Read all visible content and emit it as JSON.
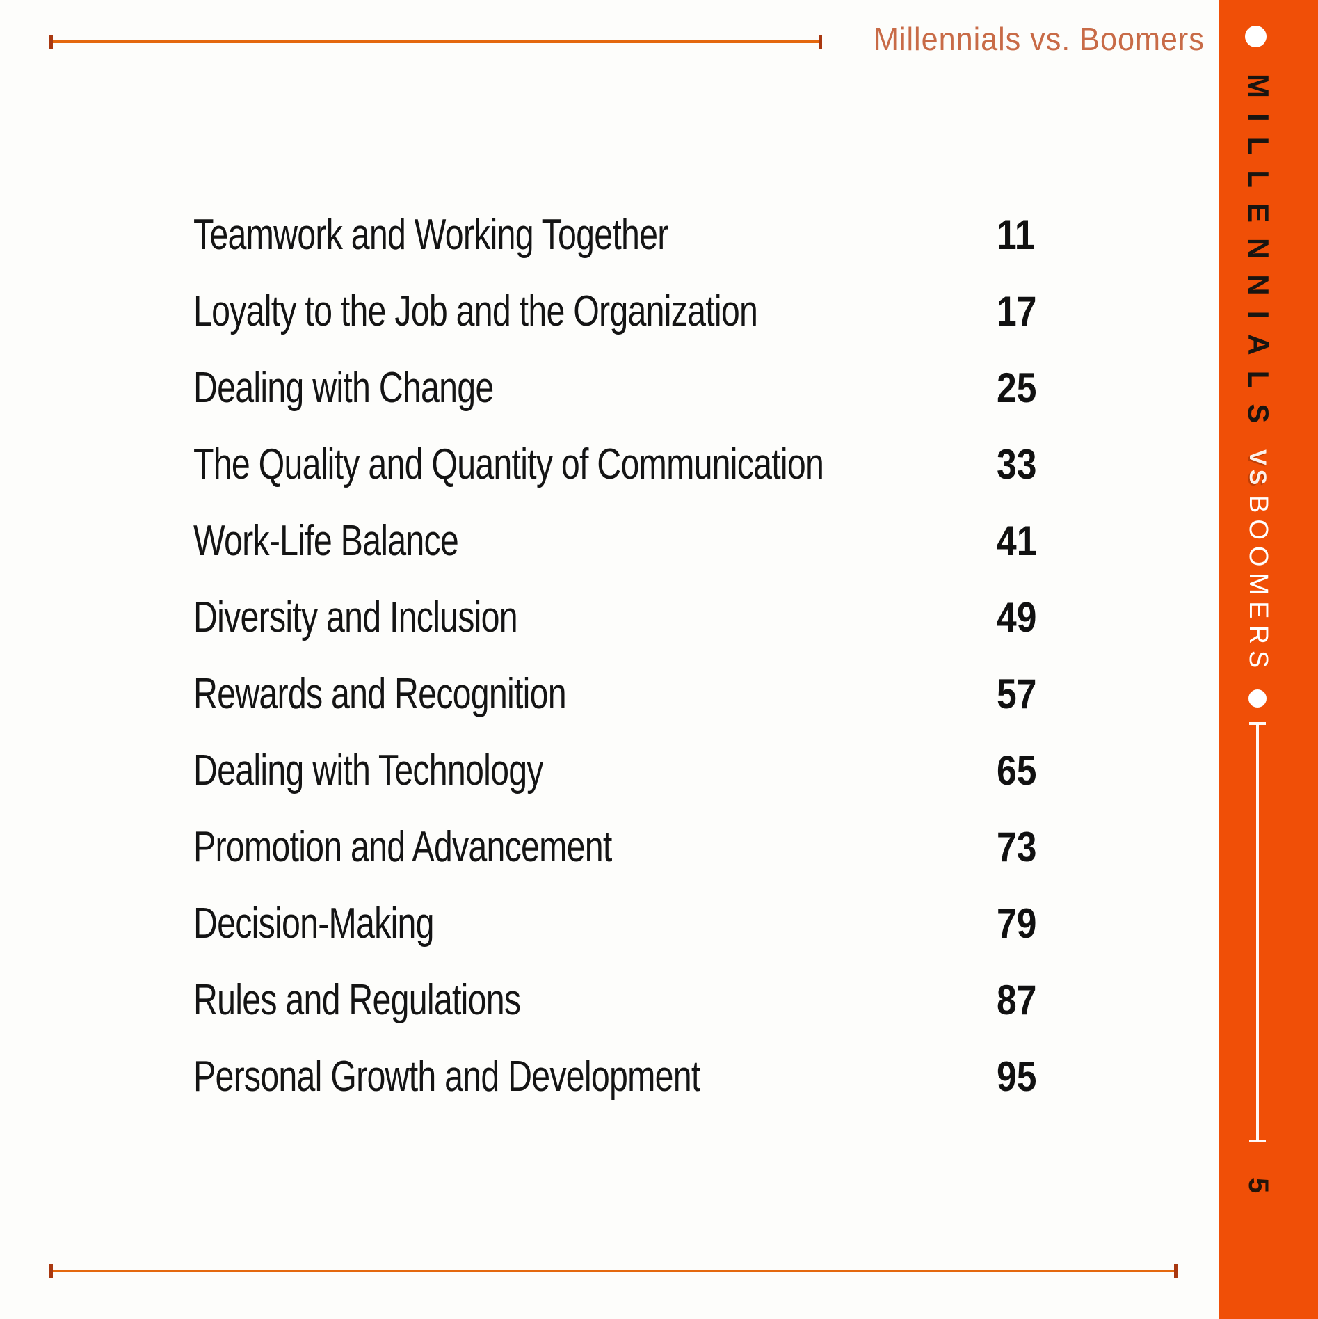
{
  "header": {
    "running_title": "Millennials vs. Boomers"
  },
  "toc": {
    "entries": [
      {
        "title": "Teamwork and Working Together",
        "page": "11"
      },
      {
        "title": "Loyalty to the Job and the Organization",
        "page": "17"
      },
      {
        "title": "Dealing with Change",
        "page": "25"
      },
      {
        "title": "The Quality and Quantity of Communication",
        "page": "33"
      },
      {
        "title": "Work-Life Balance",
        "page": "41"
      },
      {
        "title": "Diversity and Inclusion",
        "page": "49"
      },
      {
        "title": "Rewards and Recognition",
        "page": "57"
      },
      {
        "title": "Dealing with Technology",
        "page": "65"
      },
      {
        "title": "Promotion and Advancement",
        "page": "73"
      },
      {
        "title": "Decision-Making",
        "page": "79"
      },
      {
        "title": "Rules and Regulations",
        "page": "87"
      },
      {
        "title": "Personal Growth and Development",
        "page": "95"
      }
    ]
  },
  "sidebar": {
    "word_top": "MILLENNIALS",
    "word_middle": "VS",
    "word_bottom": "BOOMERS",
    "page_number": "5"
  },
  "colors": {
    "sidebar_orange": "#F04F07",
    "rule_orange": "#E4680E",
    "rule_cap": "#A93810",
    "running_title": "#C1572F",
    "text": "#141414"
  }
}
